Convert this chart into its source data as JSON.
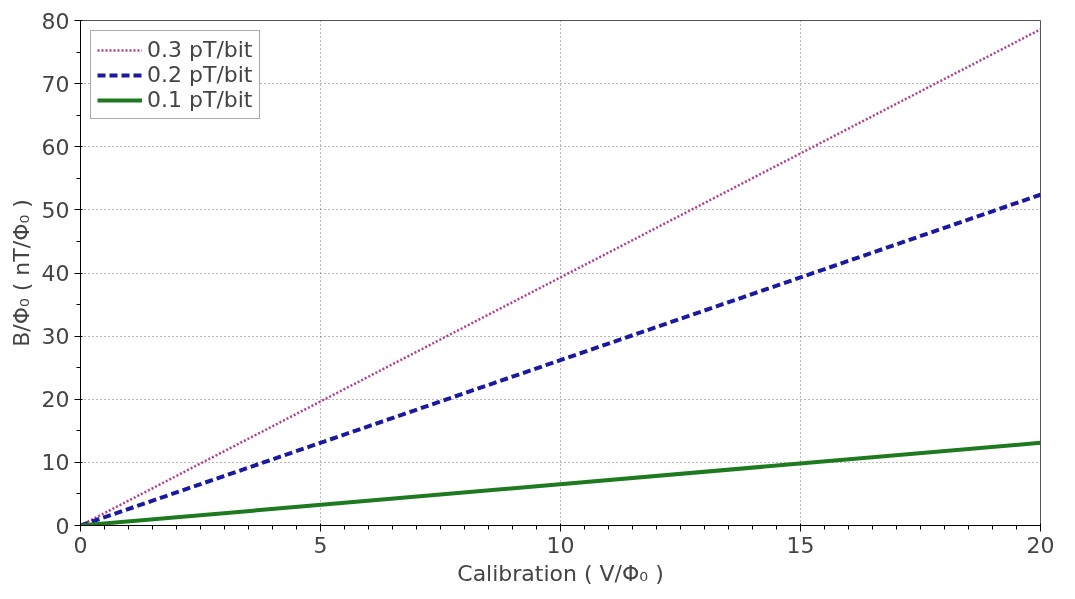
{
  "chart_data": {
    "type": "line",
    "xlabel": "Calibration ( V/Φ₀ )",
    "ylabel": "B/Φ₀ ( nT/Φ₀ )",
    "x": [
      0,
      20
    ],
    "series": [
      {
        "name": "0.3 pT/bit",
        "color": "#b0408f",
        "values": [
          0,
          78.6
        ],
        "line_style": "dotted"
      },
      {
        "name": "0.2 pT/bit",
        "color": "#1a1aa0",
        "values": [
          0,
          52.4
        ],
        "line_style": "dashed"
      },
      {
        "name": "0.1 pT/bit",
        "color": "#1e7a1e",
        "values": [
          0,
          13.1
        ],
        "line_style": "solid"
      }
    ],
    "xlim": [
      0,
      20
    ],
    "ylim": [
      0,
      80
    ],
    "xticks": [
      0,
      5,
      10,
      15,
      20
    ],
    "yticks": [
      0,
      10,
      20,
      30,
      40,
      50,
      60,
      70,
      80
    ],
    "grid": true,
    "legend": "top left",
    "marker": "none"
  }
}
